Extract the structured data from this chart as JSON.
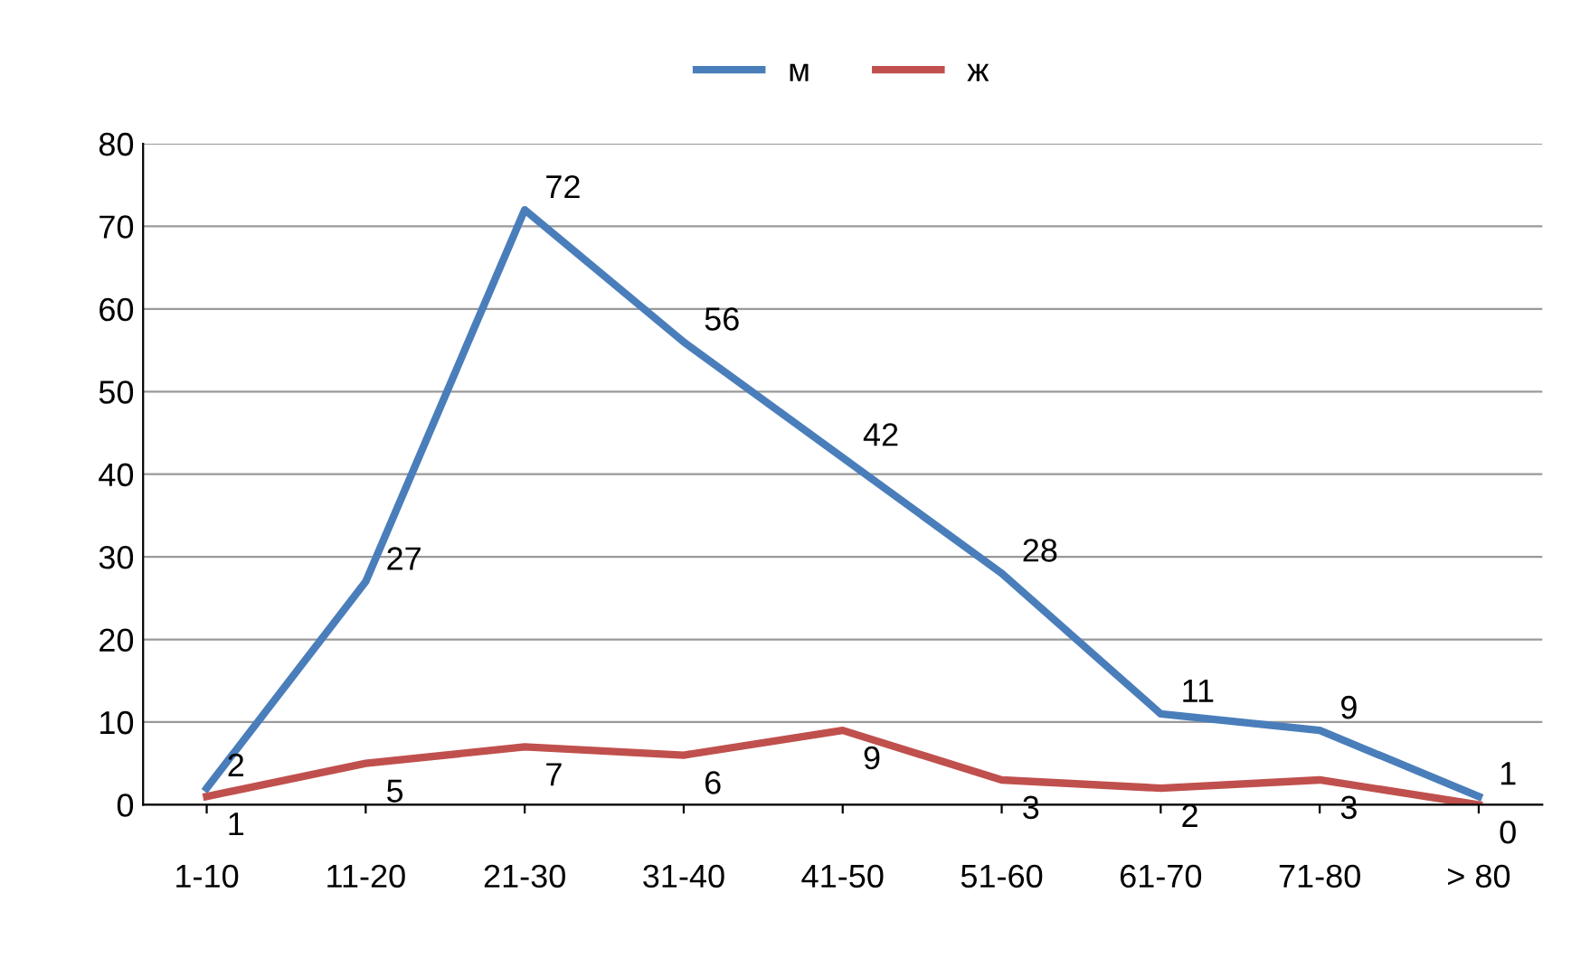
{
  "chart_data": {
    "type": "line",
    "categories": [
      "1-10",
      "11-20",
      "21-30",
      "31-40",
      "41-50",
      "51-60",
      "61-70",
      "71-80",
      "> 80"
    ],
    "series": [
      {
        "name": "м",
        "color": "#4a7ebb",
        "values": [
          2,
          27,
          72,
          56,
          42,
          28,
          11,
          9,
          1
        ]
      },
      {
        "name": "ж",
        "color": "#c0504d",
        "values": [
          1,
          5,
          7,
          6,
          9,
          3,
          2,
          3,
          0
        ]
      }
    ],
    "ylim": [
      0,
      80
    ],
    "yticks": [
      0,
      10,
      20,
      30,
      40,
      50,
      60,
      70,
      80
    ],
    "grid": "y",
    "legend": "top",
    "marker": "none",
    "line_style": "solid",
    "data_labels": true
  }
}
